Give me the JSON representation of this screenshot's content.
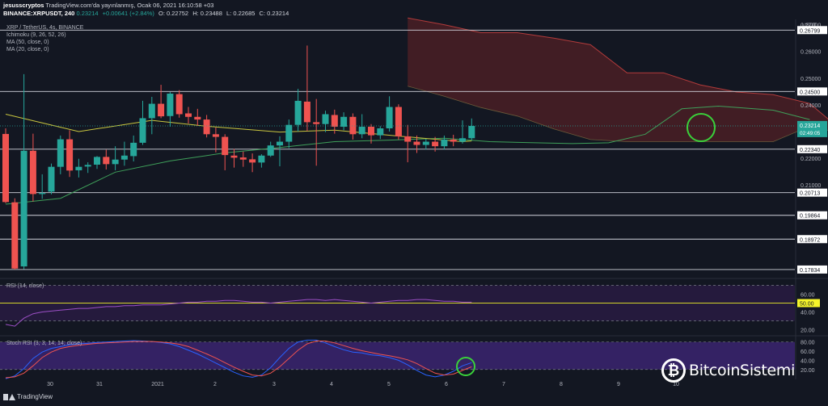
{
  "header": {
    "line1_author": "jesusscryptos",
    "line1_text": "TradingView.com'da yayınlanmış, Ocak 06, 2021 16:10:58 +03",
    "symbol": "BINANCE:XRPUSDT, 240",
    "price": "0.23214",
    "change": "+0.00641 (+2.84%)",
    "open": "O: 0.22752",
    "high": "H: 0.23488",
    "low": "L: 0.22685",
    "close": "C: 0.23214"
  },
  "legend": {
    "title": "XRP / TetherUS, 4s, BINANCE",
    "ichimoku": "Ichimoku (9, 26, 52, 26)",
    "ma50": "MA (50, close, 0)",
    "ma20": "MA (20, close, 0)"
  },
  "footer": {
    "tradingview": "TradingView"
  },
  "brand": {
    "coin": "₿",
    "name": "BitcoinSistemi"
  },
  "colors": {
    "background": "#131722",
    "up": "#26a69a",
    "down": "#ef5350",
    "ma20": "#c9c63f",
    "ichimoku_lagging": "#3fa05a",
    "cloud_bear": "#4a1f24",
    "cloud_edge": "#b23b3b",
    "rsi_line": "#9c4fc6",
    "rsi_band": "#2a1b45",
    "stoch_k": "#2962ff",
    "stoch_d": "#ef5350",
    "stoch_band": "#3b2470",
    "highlight_circle": "#3ad13a",
    "price_badge": "#26a69a",
    "rsi_level_badge": "#f5f52a",
    "rsi_level_line": "#d4d42a"
  },
  "chart_data": [
    {
      "type": "candlestick",
      "series_name": "XRP / TetherUS, 4s, BINANCE",
      "price_axis_unit": "USDT",
      "x_ticks": [
        "30",
        "31",
        "2021",
        "2",
        "3",
        "4",
        "5",
        "6",
        "7",
        "8",
        "9",
        "10"
      ],
      "y_ticks": [
        0.27,
        0.26799,
        0.26,
        0.25,
        0.245,
        0.24,
        0.23214,
        0.2234,
        0.22,
        0.21,
        0.20713,
        0.19864,
        0.18972,
        0.17834
      ],
      "horizontal_levels": [
        0.26799,
        0.245,
        0.2234,
        0.20713,
        0.19864,
        0.18972,
        0.17834
      ],
      "price_badge": {
        "price": "0.23214",
        "countdown": "02:49:05"
      },
      "ylim": [
        0.1765,
        0.272
      ],
      "candles": [
        {
          "o": 0.2291,
          "h": 0.2312,
          "l": 0.2032,
          "c": 0.2036
        },
        {
          "o": 0.2035,
          "h": 0.205,
          "l": 0.1783,
          "c": 0.1787
        },
        {
          "o": 0.1795,
          "h": 0.2515,
          "l": 0.1785,
          "c": 0.2228
        },
        {
          "o": 0.2228,
          "h": 0.2292,
          "l": 0.2038,
          "c": 0.2066
        },
        {
          "o": 0.2066,
          "h": 0.214,
          "l": 0.2048,
          "c": 0.207
        },
        {
          "o": 0.2075,
          "h": 0.218,
          "l": 0.2065,
          "c": 0.2168
        },
        {
          "o": 0.2168,
          "h": 0.2285,
          "l": 0.214,
          "c": 0.2271
        },
        {
          "o": 0.2271,
          "h": 0.2305,
          "l": 0.213,
          "c": 0.2154
        },
        {
          "o": 0.2155,
          "h": 0.2198,
          "l": 0.2128,
          "c": 0.2168
        },
        {
          "o": 0.2169,
          "h": 0.2185,
          "l": 0.2145,
          "c": 0.2175
        },
        {
          "o": 0.2176,
          "h": 0.2208,
          "l": 0.216,
          "c": 0.2205
        },
        {
          "o": 0.2205,
          "h": 0.2232,
          "l": 0.2158,
          "c": 0.2178
        },
        {
          "o": 0.2178,
          "h": 0.2245,
          "l": 0.2155,
          "c": 0.2195
        },
        {
          "o": 0.2195,
          "h": 0.2262,
          "l": 0.2172,
          "c": 0.221
        },
        {
          "o": 0.2208,
          "h": 0.2285,
          "l": 0.2188,
          "c": 0.2258
        },
        {
          "o": 0.2258,
          "h": 0.2415,
          "l": 0.225,
          "c": 0.235
        },
        {
          "o": 0.235,
          "h": 0.243,
          "l": 0.229,
          "c": 0.2404
        },
        {
          "o": 0.2404,
          "h": 0.2475,
          "l": 0.235,
          "c": 0.2357
        },
        {
          "o": 0.2358,
          "h": 0.2448,
          "l": 0.2318,
          "c": 0.2442
        },
        {
          "o": 0.244,
          "h": 0.2455,
          "l": 0.2352,
          "c": 0.2365
        },
        {
          "o": 0.2368,
          "h": 0.2392,
          "l": 0.233,
          "c": 0.2355
        },
        {
          "o": 0.2355,
          "h": 0.2385,
          "l": 0.2322,
          "c": 0.2345
        },
        {
          "o": 0.2345,
          "h": 0.2362,
          "l": 0.2278,
          "c": 0.229
        },
        {
          "o": 0.229,
          "h": 0.2315,
          "l": 0.2222,
          "c": 0.228
        },
        {
          "o": 0.228,
          "h": 0.229,
          "l": 0.2155,
          "c": 0.2212
        },
        {
          "o": 0.221,
          "h": 0.2235,
          "l": 0.2165,
          "c": 0.2202
        },
        {
          "o": 0.2203,
          "h": 0.2225,
          "l": 0.2168,
          "c": 0.2195
        },
        {
          "o": 0.2196,
          "h": 0.2218,
          "l": 0.2148,
          "c": 0.2184
        },
        {
          "o": 0.2184,
          "h": 0.2215,
          "l": 0.2165,
          "c": 0.221
        },
        {
          "o": 0.221,
          "h": 0.2262,
          "l": 0.2205,
          "c": 0.2248
        },
        {
          "o": 0.2248,
          "h": 0.2282,
          "l": 0.217,
          "c": 0.2262
        },
        {
          "o": 0.2262,
          "h": 0.2345,
          "l": 0.2238,
          "c": 0.2325
        },
        {
          "o": 0.2325,
          "h": 0.246,
          "l": 0.23,
          "c": 0.2415
        },
        {
          "o": 0.2412,
          "h": 0.2622,
          "l": 0.2302,
          "c": 0.2335
        },
        {
          "o": 0.2335,
          "h": 0.2422,
          "l": 0.2172,
          "c": 0.2328
        },
        {
          "o": 0.2328,
          "h": 0.2378,
          "l": 0.2298,
          "c": 0.2365
        },
        {
          "o": 0.2362,
          "h": 0.2382,
          "l": 0.2292,
          "c": 0.2318
        },
        {
          "o": 0.2318,
          "h": 0.2372,
          "l": 0.2305,
          "c": 0.2355
        },
        {
          "o": 0.2355,
          "h": 0.2368,
          "l": 0.227,
          "c": 0.229
        },
        {
          "o": 0.229,
          "h": 0.2365,
          "l": 0.2275,
          "c": 0.2318
        },
        {
          "o": 0.2318,
          "h": 0.2328,
          "l": 0.2255,
          "c": 0.2286
        },
        {
          "o": 0.2286,
          "h": 0.232,
          "l": 0.2272,
          "c": 0.2312
        },
        {
          "o": 0.2312,
          "h": 0.2432,
          "l": 0.23,
          "c": 0.2392
        },
        {
          "o": 0.2392,
          "h": 0.2402,
          "l": 0.227,
          "c": 0.2282
        },
        {
          "o": 0.2282,
          "h": 0.2325,
          "l": 0.2185,
          "c": 0.2262
        },
        {
          "o": 0.2262,
          "h": 0.2285,
          "l": 0.222,
          "c": 0.225
        },
        {
          "o": 0.225,
          "h": 0.2272,
          "l": 0.2232,
          "c": 0.2262
        },
        {
          "o": 0.2262,
          "h": 0.228,
          "l": 0.2225,
          "c": 0.2245
        },
        {
          "o": 0.2245,
          "h": 0.2285,
          "l": 0.2232,
          "c": 0.227
        },
        {
          "o": 0.227,
          "h": 0.2288,
          "l": 0.2245,
          "c": 0.2262
        },
        {
          "o": 0.2262,
          "h": 0.2342,
          "l": 0.2255,
          "c": 0.2275
        },
        {
          "o": 0.2275,
          "h": 0.2349,
          "l": 0.2268,
          "c": 0.2321
        }
      ],
      "ma20": [
        [
          0,
          0.2365
        ],
        [
          8,
          0.23
        ],
        [
          16,
          0.2342
        ],
        [
          22,
          0.232
        ],
        [
          30,
          0.2298
        ],
        [
          36,
          0.2305
        ],
        [
          44,
          0.228
        ],
        [
          50,
          0.2262
        ],
        [
          51,
          0.2265
        ]
      ],
      "ichimoku_lagging": [
        [
          0,
          0.2028
        ],
        [
          6,
          0.205
        ],
        [
          12,
          0.2148
        ],
        [
          18,
          0.219
        ],
        [
          24,
          0.222
        ],
        [
          30,
          0.224
        ],
        [
          36,
          0.2262
        ],
        [
          42,
          0.2268
        ],
        [
          48,
          0.2275
        ],
        [
          53,
          0.2262
        ],
        [
          58,
          0.2258
        ],
        [
          62,
          0.2255
        ],
        [
          66,
          0.2258
        ],
        [
          70,
          0.229
        ],
        [
          74,
          0.2385
        ],
        [
          78,
          0.2395
        ],
        [
          84,
          0.238
        ],
        [
          88,
          0.2345
        ]
      ],
      "cloud_top": [
        [
          44,
          0.2725
        ],
        [
          48,
          0.27
        ],
        [
          52,
          0.267
        ],
        [
          56,
          0.267
        ],
        [
          60,
          0.265
        ],
        [
          64,
          0.2625
        ],
        [
          68,
          0.252
        ],
        [
          72,
          0.252
        ],
        [
          76,
          0.2475
        ],
        [
          80,
          0.2448
        ],
        [
          84,
          0.2438
        ],
        [
          88,
          0.2405
        ],
        [
          92,
          0.229
        ],
        [
          96,
          0.2195
        ]
      ],
      "cloud_bottom": [
        [
          44,
          0.247
        ],
        [
          48,
          0.2432
        ],
        [
          52,
          0.239
        ],
        [
          56,
          0.2358
        ],
        [
          60,
          0.231
        ],
        [
          64,
          0.227
        ],
        [
          68,
          0.2262
        ],
        [
          72,
          0.2262
        ],
        [
          76,
          0.2262
        ],
        [
          80,
          0.2262
        ],
        [
          84,
          0.2262
        ],
        [
          88,
          0.232
        ],
        [
          92,
          0.229
        ],
        [
          96,
          0.2195
        ]
      ]
    },
    {
      "type": "line",
      "title": "RSI (14, close)",
      "y_ticks": [
        60.0,
        50.0,
        40.0,
        20.0
      ],
      "level": "50.00",
      "band": [
        30,
        70
      ],
      "ylim": [
        15,
        75
      ],
      "values": [
        26,
        24,
        33,
        38,
        40,
        41,
        42,
        43,
        44,
        44,
        45,
        46,
        46,
        47,
        47,
        48,
        48,
        48,
        49,
        50,
        51,
        51,
        52,
        52,
        53,
        53,
        52,
        51,
        51,
        50,
        51,
        52,
        53,
        54,
        54,
        53,
        54,
        53,
        52,
        51,
        50,
        51,
        52,
        53,
        53,
        54,
        54,
        53,
        52,
        52,
        51,
        51
      ]
    },
    {
      "type": "line",
      "title": "Stoch RSI (3, 3, 14, 14, close)",
      "y_ticks": [
        80.0,
        60.0,
        40.0,
        20.0
      ],
      "band": [
        20,
        80
      ],
      "ylim": [
        2,
        90
      ],
      "series": [
        {
          "name": "K",
          "values": [
            0,
            6,
            22,
            44,
            58,
            66,
            70,
            74,
            76,
            77,
            79,
            80,
            81,
            82,
            83,
            82,
            81,
            79,
            76,
            70,
            62,
            54,
            44,
            34,
            24,
            14,
            6,
            3,
            8,
            24,
            46,
            66,
            80,
            84,
            84,
            78,
            70,
            63,
            58,
            56,
            52,
            50,
            46,
            40,
            30,
            18,
            8,
            4,
            8,
            16,
            28,
            35
          ]
        },
        {
          "name": "D",
          "values": [
            2,
            4,
            12,
            28,
            46,
            58,
            66,
            70,
            73,
            75,
            77,
            78,
            79,
            80,
            81,
            81,
            81,
            80,
            78,
            75,
            70,
            62,
            54,
            45,
            35,
            25,
            16,
            8,
            6,
            12,
            26,
            44,
            62,
            76,
            82,
            82,
            78,
            72,
            66,
            61,
            57,
            53,
            50,
            46,
            41,
            33,
            22,
            12,
            8,
            10,
            18,
            26
          ]
        }
      ]
    }
  ]
}
